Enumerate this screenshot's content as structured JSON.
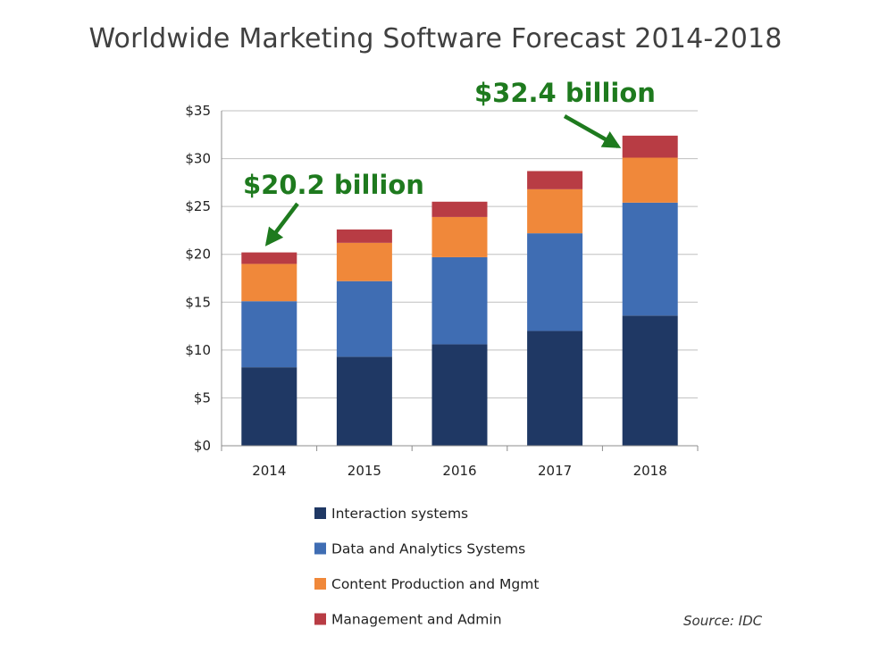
{
  "chart_data": {
    "type": "bar",
    "stacked": true,
    "title": "Worldwide Marketing Software Forecast 2014-2018",
    "xlabel": "",
    "ylabel": "",
    "categories": [
      "2014",
      "2015",
      "2016",
      "2017",
      "2018"
    ],
    "ylim": [
      0,
      35
    ],
    "yticks": [
      0,
      5,
      10,
      15,
      20,
      25,
      30,
      35
    ],
    "ytick_labels": [
      "$0",
      "$5",
      "$10",
      "$15",
      "$20",
      "$25",
      "$30",
      "$35"
    ],
    "grid": true,
    "legend_position": "bottom",
    "series": [
      {
        "name": "Interaction systems",
        "color": "#1f3864",
        "values": [
          8.2,
          9.3,
          10.6,
          12.0,
          13.6
        ]
      },
      {
        "name": "Data and Analytics Systems",
        "color": "#3f6db3",
        "values": [
          6.9,
          7.9,
          9.1,
          10.2,
          11.8
        ]
      },
      {
        "name": "Content Production and Mgmt",
        "color": "#f0883a",
        "values": [
          3.9,
          4.0,
          4.2,
          4.6,
          4.7
        ]
      },
      {
        "name": "Management and Admin",
        "color": "#b83c44",
        "values": [
          1.2,
          1.4,
          1.6,
          1.9,
          2.3
        ]
      }
    ],
    "annotations": [
      {
        "text": "$20.2 billion",
        "category": "2014",
        "value": 20.2
      },
      {
        "text": "$32.4 billion",
        "category": "2018",
        "value": 32.4
      }
    ],
    "source": "Source: IDC"
  },
  "colors": {
    "annotation": "#1e7a1e",
    "gridline": "#bfbfbf",
    "axis": "#8c8c8c"
  }
}
